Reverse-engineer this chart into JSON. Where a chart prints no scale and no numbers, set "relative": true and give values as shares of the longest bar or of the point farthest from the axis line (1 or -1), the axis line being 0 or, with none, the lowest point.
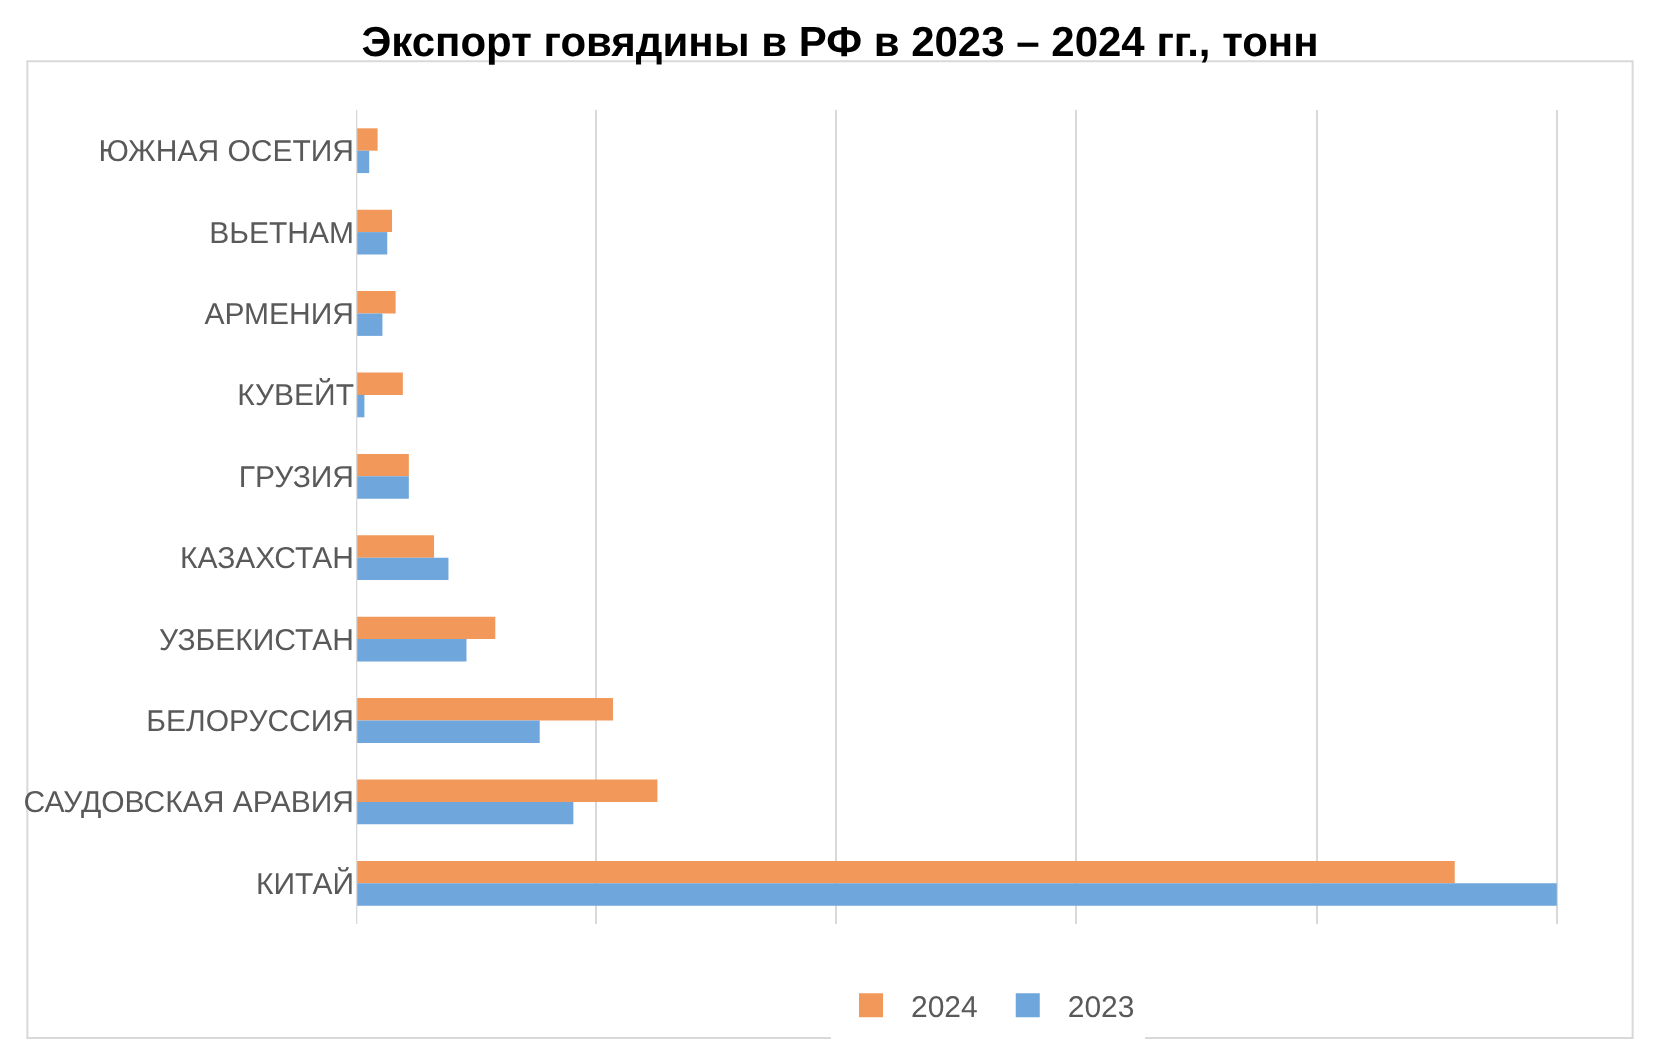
{
  "chart_data": {
    "type": "bar",
    "title": "Экспорт говядины в РФ в 2023 – 2024 гг., тонн",
    "orientation": "horizontal",
    "relative": true,
    "grid": "x",
    "legend": "bottom",
    "categories": [
      "ЮЖНАЯ ОСЕТИЯ",
      "ВЬЕТНАМ",
      "АРМЕНИЯ",
      "КУВЕЙТ",
      "ГРУЗИЯ",
      "КАЗАХСТАН",
      "УЗБЕКИСТАН",
      "БЕЛОРУССИЯ",
      "САУДОВСКАЯ АРАВИЯ",
      "КИТАЙ"
    ],
    "series": [
      {
        "name": "2024",
        "color": "#f2985a",
        "values": [
          0.018,
          0.03,
          0.033,
          0.039,
          0.044,
          0.065,
          0.116,
          0.214,
          0.251,
          0.915
        ]
      },
      {
        "name": "2023",
        "color": "#6fa6dc",
        "values": [
          0.011,
          0.026,
          0.022,
          0.007,
          0.044,
          0.077,
          0.092,
          0.153,
          0.181,
          1
        ]
      }
    ]
  }
}
